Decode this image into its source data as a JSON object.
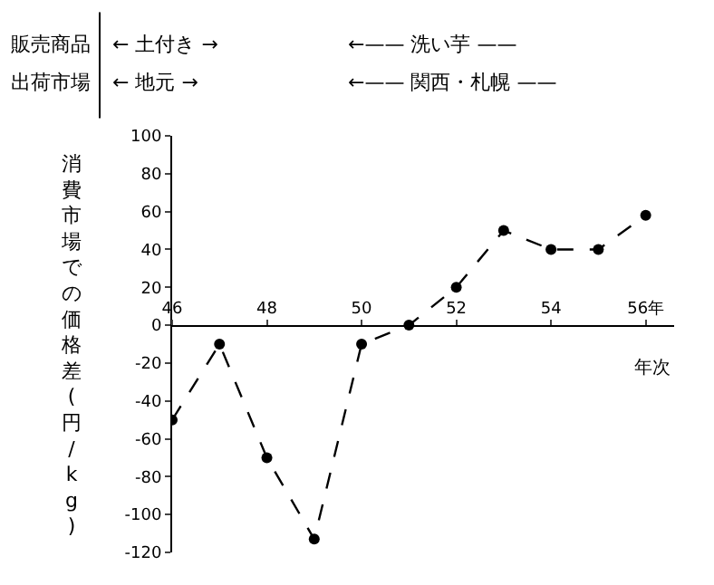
{
  "chart_data": {
    "type": "line",
    "xlabel": "年次",
    "ylabel": "消費市場での価格差(円/kg)",
    "annotations": [
      "販売商品",
      "← 土付き →",
      "←—— 洗い芋 ——",
      "出荷市場",
      "← 地元 →",
      "←—— 関西・札幌 ——"
    ],
    "x": [
      46,
      47,
      48,
      49,
      50,
      51,
      52,
      53,
      54,
      55,
      56
    ],
    "series": [
      {
        "color": "#000000",
        "values": [
          -50,
          -10,
          -70,
          -113,
          -10,
          0,
          20,
          50,
          40,
          40,
          58
        ]
      }
    ],
    "xlim": [
      46,
      56.6
    ],
    "xticks": [
      46,
      48,
      50,
      52,
      54,
      {
        "value": 56,
        "label": "56年"
      }
    ],
    "ylim": [
      -120,
      100
    ],
    "yticks": [
      100,
      80,
      60,
      40,
      20,
      0,
      -20,
      -40,
      -60,
      -80,
      -100,
      -120
    ],
    "marker": "circle",
    "line_style": "dashed"
  }
}
